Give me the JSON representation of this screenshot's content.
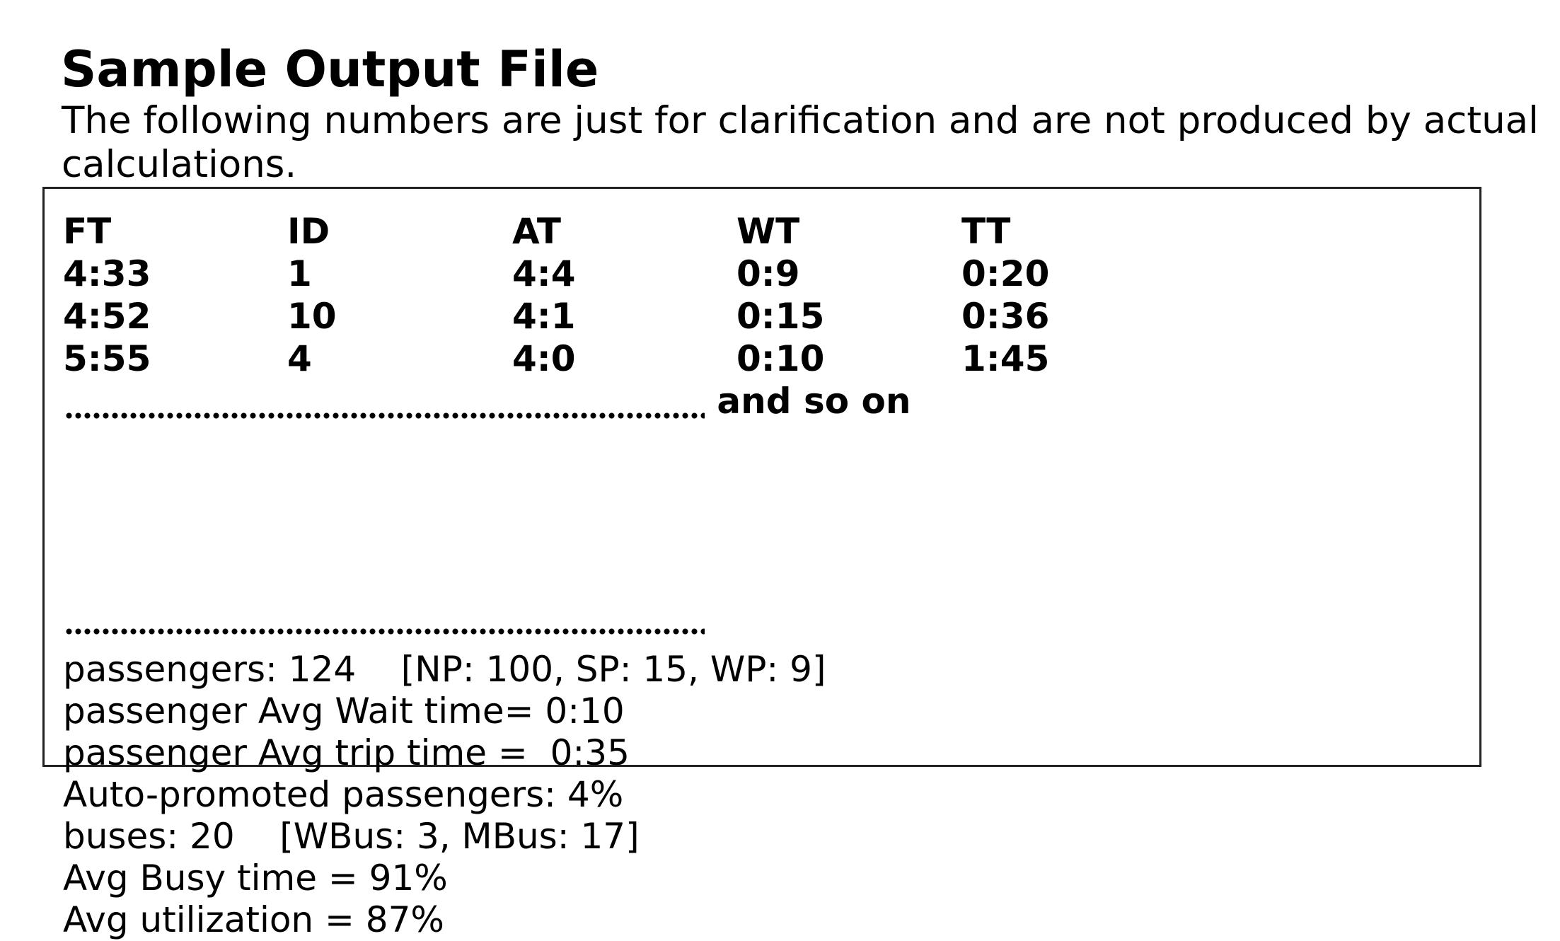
{
  "heading": "Sample Output File",
  "intro": "The following numbers are just for clarification and are not produced by actual calculations.",
  "table": {
    "headers": [
      "FT",
      "ID",
      "AT",
      "WT",
      "TT"
    ],
    "rows": [
      [
        "4:33",
        "1",
        "4:4",
        "0:9",
        "0:20"
      ],
      [
        "4:52",
        "10",
        "4:1",
        "0:15",
        "0:36"
      ],
      [
        "5:55",
        "4",
        "4:0",
        "0:10",
        "1:45"
      ]
    ],
    "continuation": "and so on"
  },
  "summary": {
    "passengers": "passengers: 124    [NP: 100, SP: 15, WP: 9]",
    "avg_wait": "passenger Avg Wait time= 0:10",
    "avg_trip": "passenger Avg trip time =  0:35",
    "auto_promoted": "Auto-promoted passengers: 4%",
    "buses": "buses: 20    [WBus: 3, MBus: 17]",
    "avg_busy": "Avg Busy time = 91%",
    "avg_utilization": "Avg utilization = 87%"
  }
}
